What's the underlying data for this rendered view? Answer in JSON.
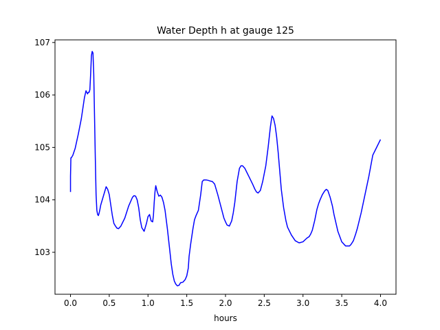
{
  "chart_data": {
    "type": "line",
    "title": "Water Depth h at gauge 125",
    "xlabel": "hours",
    "ylabel": "",
    "xlim": [
      -0.2,
      4.2
    ],
    "ylim": [
      102.2,
      107.05
    ],
    "xticks": [
      0.0,
      0.5,
      1.0,
      1.5,
      2.0,
      2.5,
      3.0,
      3.5,
      4.0
    ],
    "xtick_labels": [
      "0.0",
      "0.5",
      "1.0",
      "1.5",
      "2.0",
      "2.5",
      "3.0",
      "3.5",
      "4.0"
    ],
    "yticks": [
      103,
      104,
      105,
      106,
      107
    ],
    "ytick_labels": [
      "103",
      "104",
      "105",
      "106",
      "107"
    ],
    "grid": false,
    "series": [
      {
        "color": "#0000ff",
        "x": [
          0.0,
          0.0,
          0.005,
          0.01,
          0.03,
          0.06,
          0.1,
          0.14,
          0.18,
          0.2,
          0.21,
          0.22,
          0.23,
          0.24,
          0.25,
          0.26,
          0.27,
          0.28,
          0.29,
          0.3,
          0.31,
          0.32,
          0.33,
          0.34,
          0.35,
          0.36,
          0.37,
          0.38,
          0.39,
          0.4,
          0.42,
          0.44,
          0.46,
          0.48,
          0.5,
          0.52,
          0.54,
          0.56,
          0.58,
          0.6,
          0.62,
          0.65,
          0.7,
          0.75,
          0.8,
          0.82,
          0.84,
          0.86,
          0.88,
          0.9,
          0.92,
          0.95,
          0.98,
          1.0,
          1.02,
          1.04,
          1.06,
          1.07,
          1.08,
          1.09,
          1.1,
          1.12,
          1.14,
          1.16,
          1.18,
          1.2,
          1.22,
          1.25,
          1.28,
          1.3,
          1.32,
          1.34,
          1.36,
          1.38,
          1.4,
          1.42,
          1.45,
          1.48,
          1.5,
          1.52,
          1.53,
          1.55,
          1.58,
          1.6,
          1.62,
          1.65,
          1.68,
          1.7,
          1.72,
          1.75,
          1.78,
          1.8,
          1.83,
          1.86,
          1.9,
          1.95,
          1.98,
          2.0,
          2.02,
          2.05,
          2.08,
          2.1,
          2.12,
          2.15,
          2.18,
          2.2,
          2.22,
          2.25,
          2.3,
          2.35,
          2.38,
          2.4,
          2.42,
          2.45,
          2.48,
          2.5,
          2.52,
          2.55,
          2.58,
          2.6,
          2.62,
          2.64,
          2.66,
          2.68,
          2.7,
          2.72,
          2.75,
          2.78,
          2.8,
          2.85,
          2.9,
          2.95,
          3.0,
          3.05,
          3.08,
          3.1,
          3.12,
          3.15,
          3.18,
          3.2,
          3.22,
          3.25,
          3.28,
          3.3,
          3.32,
          3.35,
          3.38,
          3.4,
          3.45,
          3.5,
          3.55,
          3.6,
          3.62,
          3.65,
          3.68,
          3.7,
          3.75,
          3.8,
          3.85,
          3.9,
          3.95,
          4.0
        ],
        "y": [
          104.15,
          104.45,
          104.8,
          104.8,
          104.85,
          104.98,
          105.25,
          105.55,
          105.95,
          106.08,
          106.05,
          106.02,
          106.05,
          106.05,
          106.1,
          106.4,
          106.75,
          106.83,
          106.8,
          106.4,
          105.6,
          104.8,
          104.1,
          103.8,
          103.72,
          103.7,
          103.75,
          103.82,
          103.9,
          103.95,
          104.05,
          104.15,
          104.25,
          104.2,
          104.1,
          103.9,
          103.7,
          103.55,
          103.5,
          103.46,
          103.45,
          103.5,
          103.65,
          103.88,
          104.05,
          104.08,
          104.07,
          104.0,
          103.85,
          103.62,
          103.47,
          103.4,
          103.55,
          103.68,
          103.72,
          103.6,
          103.58,
          103.7,
          103.95,
          104.15,
          104.27,
          104.15,
          104.07,
          104.09,
          104.05,
          103.95,
          103.8,
          103.45,
          103.05,
          102.78,
          102.58,
          102.45,
          102.39,
          102.36,
          102.37,
          102.42,
          102.43,
          102.48,
          102.55,
          102.7,
          102.92,
          103.15,
          103.45,
          103.62,
          103.7,
          103.8,
          104.1,
          104.35,
          104.38,
          104.38,
          104.37,
          104.36,
          104.35,
          104.3,
          104.1,
          103.82,
          103.65,
          103.58,
          103.52,
          103.5,
          103.6,
          103.75,
          103.95,
          104.35,
          104.6,
          104.65,
          104.65,
          104.6,
          104.45,
          104.3,
          104.2,
          104.15,
          104.13,
          104.18,
          104.35,
          104.5,
          104.65,
          105.0,
          105.4,
          105.6,
          105.55,
          105.42,
          105.2,
          104.9,
          104.55,
          104.2,
          103.85,
          103.6,
          103.48,
          103.33,
          103.22,
          103.18,
          103.2,
          103.27,
          103.3,
          103.35,
          103.42,
          103.6,
          103.82,
          103.92,
          104.0,
          104.1,
          104.17,
          104.2,
          104.18,
          104.05,
          103.88,
          103.72,
          103.4,
          103.2,
          103.12,
          103.12,
          103.15,
          103.22,
          103.35,
          103.45,
          103.75,
          104.1,
          104.45,
          104.85,
          105.0,
          105.15
        ]
      }
    ]
  }
}
